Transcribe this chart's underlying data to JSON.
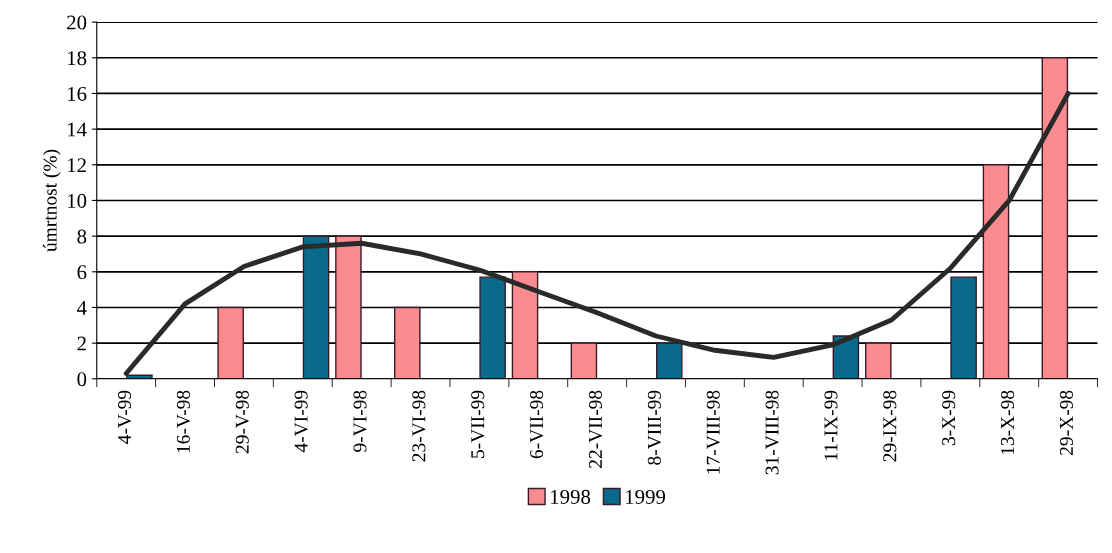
{
  "chart_data": {
    "type": "bar",
    "ylabel": "úmrtnost (%)",
    "categories": [
      "4-V-99",
      "16-V-98",
      "29-V-98",
      "4-VI-99",
      "9-VI-98",
      "23-VI-98",
      "5-VII-99",
      "6-VII-98",
      "22-VII-98",
      "8-VIII-99",
      "17-VIII-98",
      "31-VIII-98",
      "11-IX-99",
      "29-IX-98",
      "3-X-99",
      "13-X-98",
      "29-X-98"
    ],
    "series": [
      {
        "name": "1998",
        "color": "#fa8c90",
        "values": [
          null,
          null,
          4,
          null,
          8,
          4,
          null,
          6,
          2,
          null,
          null,
          null,
          null,
          2,
          null,
          12,
          18
        ]
      },
      {
        "name": "1999",
        "color": "#0a6a8c",
        "values": [
          0.2,
          null,
          null,
          8,
          null,
          null,
          5.7,
          null,
          null,
          2,
          null,
          null,
          2.4,
          null,
          5.7,
          null,
          null
        ]
      },
      {
        "type": "line",
        "color": "#2a2a2a",
        "values": [
          0.3,
          4.2,
          6.3,
          7.4,
          7.6,
          7.0,
          6.1,
          4.9,
          3.7,
          2.4,
          1.6,
          1.2,
          1.9,
          3.3,
          6.2,
          10,
          16
        ]
      }
    ],
    "ylim": [
      0,
      20
    ],
    "yticks": [
      0,
      2,
      4,
      6,
      8,
      10,
      12,
      14,
      16,
      18,
      20
    ],
    "grid": "y",
    "legend": "bottom"
  }
}
